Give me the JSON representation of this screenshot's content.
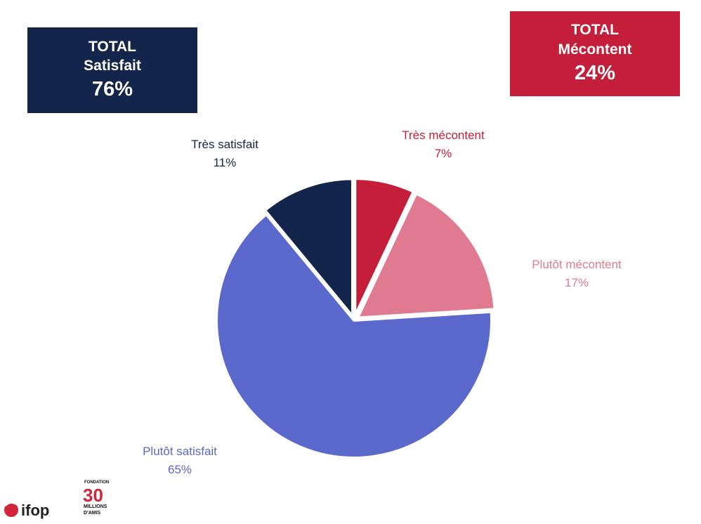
{
  "totals": {
    "satisfied": {
      "line1": "TOTAL",
      "line2": "Satisfait",
      "value": "76%",
      "color": "#13254a"
    },
    "unhappy": {
      "line1": "TOTAL",
      "line2": "Mécontent",
      "value": "24%",
      "color": "#c41e3a"
    }
  },
  "chart_data": {
    "type": "pie",
    "slices": [
      {
        "label": "Très mécontent",
        "value": 7,
        "value_label": "7%",
        "color": "#c41e3a"
      },
      {
        "label": "Plutôt mécontent",
        "value": 17,
        "value_label": "17%",
        "color": "#e07a90"
      },
      {
        "label": "Plutôt satisfait",
        "value": 65,
        "value_label": "65%",
        "color": "#5b68cc"
      },
      {
        "label": "Très satisfait",
        "value": 11,
        "value_label": "11%",
        "color": "#13254a"
      }
    ]
  },
  "logos": {
    "ifop": "ifop",
    "fondation_top": "FONDATION",
    "fondation_number": "30",
    "fondation_line1": "MILLIONS",
    "fondation_line2": "D'AMIS"
  }
}
